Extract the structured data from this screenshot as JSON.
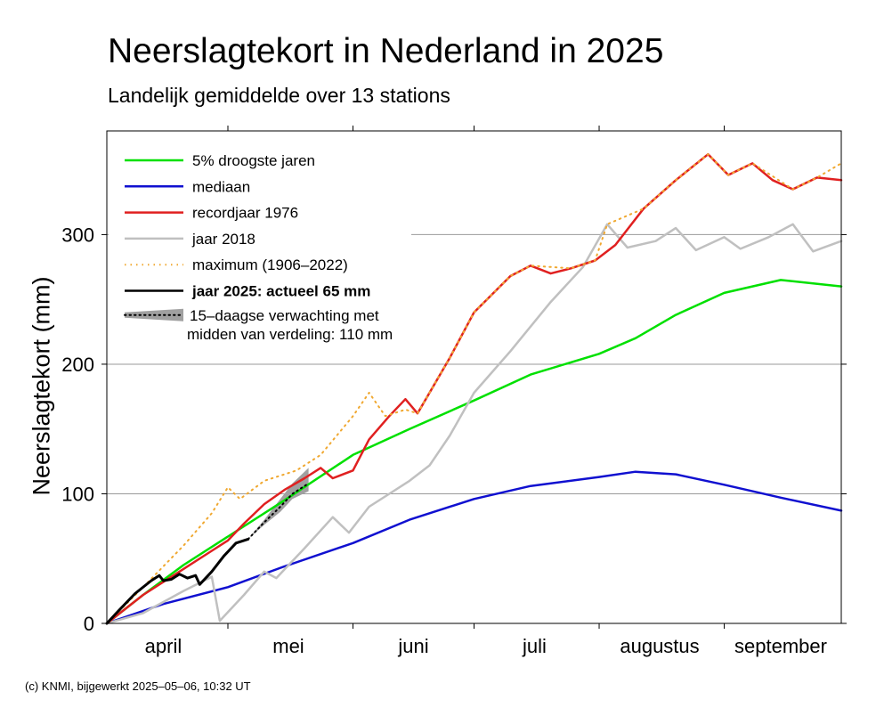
{
  "chart_data": {
    "type": "line",
    "title": "Neerslagtekort in Nederland in 2025",
    "subtitle": "Landelijk gemiddelde over 13 stations",
    "ylabel": "Neerslagtekort (mm)",
    "xlabel": "",
    "x_start": "2025-04-01",
    "x_end": "2025-09-30",
    "ylim": [
      0,
      380
    ],
    "yticks": [
      0,
      100,
      200,
      300
    ],
    "month_labels": [
      {
        "label": "april",
        "date": "2025-04-15"
      },
      {
        "label": "mei",
        "date": "2025-05-16"
      },
      {
        "label": "juni",
        "date": "2025-06-16"
      },
      {
        "label": "juli",
        "date": "2025-07-16"
      },
      {
        "label": "augustus",
        "date": "2025-08-16"
      },
      {
        "label": "september",
        "date": "2025-09-15"
      }
    ],
    "month_boundaries": [
      "2025-05-01",
      "2025-06-01",
      "2025-07-01",
      "2025-08-01",
      "2025-09-01"
    ],
    "grid": "horizontal",
    "legend_position": "top-left",
    "series": [
      {
        "name": "5% droogste jaren",
        "color": "#00e000",
        "style": "solid",
        "points": [
          [
            "2025-04-01",
            0
          ],
          [
            "2025-04-10",
            22
          ],
          [
            "2025-04-20",
            45
          ],
          [
            "2025-05-01",
            67
          ],
          [
            "2025-05-15",
            95
          ],
          [
            "2025-06-01",
            130
          ],
          [
            "2025-06-15",
            150
          ],
          [
            "2025-07-01",
            172
          ],
          [
            "2025-07-15",
            192
          ],
          [
            "2025-08-01",
            208
          ],
          [
            "2025-08-10",
            220
          ],
          [
            "2025-08-20",
            238
          ],
          [
            "2025-09-01",
            255
          ],
          [
            "2025-09-15",
            265
          ],
          [
            "2025-09-30",
            260
          ]
        ]
      },
      {
        "name": "mediaan",
        "color": "#1010d0",
        "style": "solid",
        "points": [
          [
            "2025-04-01",
            0
          ],
          [
            "2025-04-15",
            15
          ],
          [
            "2025-05-01",
            28
          ],
          [
            "2025-05-15",
            44
          ],
          [
            "2025-06-01",
            62
          ],
          [
            "2025-06-15",
            80
          ],
          [
            "2025-07-01",
            96
          ],
          [
            "2025-07-15",
            106
          ],
          [
            "2025-08-01",
            113
          ],
          [
            "2025-08-10",
            117
          ],
          [
            "2025-08-20",
            115
          ],
          [
            "2025-09-01",
            107
          ],
          [
            "2025-09-15",
            97
          ],
          [
            "2025-09-30",
            87
          ]
        ]
      },
      {
        "name": "recordjaar 1976",
        "color": "#e02020",
        "style": "solid",
        "points": [
          [
            "2025-04-01",
            0
          ],
          [
            "2025-04-10",
            22
          ],
          [
            "2025-04-20",
            42
          ],
          [
            "2025-04-27",
            56
          ],
          [
            "2025-05-01",
            64
          ],
          [
            "2025-05-05",
            77
          ],
          [
            "2025-05-10",
            92
          ],
          [
            "2025-05-15",
            103
          ],
          [
            "2025-05-20",
            112
          ],
          [
            "2025-05-24",
            120
          ],
          [
            "2025-05-27",
            112
          ],
          [
            "2025-06-01",
            118
          ],
          [
            "2025-06-05",
            142
          ],
          [
            "2025-06-10",
            160
          ],
          [
            "2025-06-14",
            173
          ],
          [
            "2025-06-17",
            162
          ],
          [
            "2025-06-25",
            205
          ],
          [
            "2025-07-01",
            240
          ],
          [
            "2025-07-10",
            268
          ],
          [
            "2025-07-15",
            276
          ],
          [
            "2025-07-20",
            270
          ],
          [
            "2025-07-25",
            274
          ],
          [
            "2025-07-31",
            280
          ],
          [
            "2025-08-05",
            292
          ],
          [
            "2025-08-12",
            320
          ],
          [
            "2025-08-20",
            342
          ],
          [
            "2025-08-28",
            362
          ],
          [
            "2025-09-02",
            346
          ],
          [
            "2025-09-08",
            355
          ],
          [
            "2025-09-13",
            342
          ],
          [
            "2025-09-18",
            335
          ],
          [
            "2025-09-24",
            344
          ],
          [
            "2025-09-30",
            342
          ]
        ]
      },
      {
        "name": "jaar 2018",
        "color": "#c0c0c0",
        "style": "solid",
        "points": [
          [
            "2025-04-01",
            0
          ],
          [
            "2025-04-10",
            8
          ],
          [
            "2025-04-20",
            25
          ],
          [
            "2025-04-27",
            36
          ],
          [
            "2025-04-29",
            2
          ],
          [
            "2025-05-05",
            22
          ],
          [
            "2025-05-10",
            40
          ],
          [
            "2025-05-13",
            35
          ],
          [
            "2025-05-20",
            58
          ],
          [
            "2025-05-27",
            82
          ],
          [
            "2025-05-31",
            70
          ],
          [
            "2025-06-05",
            90
          ],
          [
            "2025-06-10",
            100
          ],
          [
            "2025-06-15",
            110
          ],
          [
            "2025-06-20",
            122
          ],
          [
            "2025-06-25",
            145
          ],
          [
            "2025-07-01",
            178
          ],
          [
            "2025-07-10",
            210
          ],
          [
            "2025-07-20",
            248
          ],
          [
            "2025-07-28",
            275
          ],
          [
            "2025-08-03",
            308
          ],
          [
            "2025-08-08",
            290
          ],
          [
            "2025-08-15",
            295
          ],
          [
            "2025-08-20",
            305
          ],
          [
            "2025-08-25",
            288
          ],
          [
            "2025-09-01",
            298
          ],
          [
            "2025-09-05",
            289
          ],
          [
            "2025-09-12",
            298
          ],
          [
            "2025-09-18",
            308
          ],
          [
            "2025-09-23",
            287
          ],
          [
            "2025-09-30",
            295
          ]
        ]
      },
      {
        "name": "maximum (1906–2022)",
        "color": "#f0a830",
        "style": "dotted",
        "points": [
          [
            "2025-04-01",
            0
          ],
          [
            "2025-04-10",
            28
          ],
          [
            "2025-04-20",
            60
          ],
          [
            "2025-04-27",
            85
          ],
          [
            "2025-05-01",
            105
          ],
          [
            "2025-05-04",
            96
          ],
          [
            "2025-05-10",
            110
          ],
          [
            "2025-05-18",
            118
          ],
          [
            "2025-05-24",
            130
          ],
          [
            "2025-06-01",
            160
          ],
          [
            "2025-06-05",
            178
          ],
          [
            "2025-06-09",
            160
          ],
          [
            "2025-06-14",
            165
          ],
          [
            "2025-06-17",
            162
          ],
          [
            "2025-06-25",
            205
          ],
          [
            "2025-07-01",
            240
          ],
          [
            "2025-07-10",
            268
          ],
          [
            "2025-07-15",
            276
          ],
          [
            "2025-07-25",
            274
          ],
          [
            "2025-07-31",
            280
          ],
          [
            "2025-08-03",
            308
          ],
          [
            "2025-08-12",
            320
          ],
          [
            "2025-08-20",
            342
          ],
          [
            "2025-08-28",
            362
          ],
          [
            "2025-09-02",
            346
          ],
          [
            "2025-09-08",
            355
          ],
          [
            "2025-09-18",
            335
          ],
          [
            "2025-09-24",
            344
          ],
          [
            "2025-09-30",
            355
          ]
        ]
      },
      {
        "name": "jaar 2025: actueel 65 mm",
        "color": "#000000",
        "style": "solid",
        "points": [
          [
            "2025-04-01",
            0
          ],
          [
            "2025-04-04",
            10
          ],
          [
            "2025-04-08",
            23
          ],
          [
            "2025-04-12",
            33
          ],
          [
            "2025-04-14",
            37
          ],
          [
            "2025-04-15",
            33
          ],
          [
            "2025-04-17",
            34
          ],
          [
            "2025-04-19",
            38
          ],
          [
            "2025-04-21",
            35
          ],
          [
            "2025-04-23",
            37
          ],
          [
            "2025-04-24",
            30
          ],
          [
            "2025-04-27",
            40
          ],
          [
            "2025-04-30",
            52
          ],
          [
            "2025-05-03",
            62
          ],
          [
            "2025-05-06",
            65
          ]
        ]
      }
    ],
    "forecast": {
      "name": "15-daagse verwachting met midden van verdeling: 110 mm",
      "color": "#a0a0a0",
      "median_color": "#000000",
      "median": [
        [
          "2025-05-06",
          65
        ],
        [
          "2025-05-10",
          78
        ],
        [
          "2025-05-14",
          90
        ],
        [
          "2025-05-17",
          100
        ],
        [
          "2025-05-21",
          108
        ]
      ],
      "lower": [
        [
          "2025-05-06",
          65
        ],
        [
          "2025-05-10",
          76
        ],
        [
          "2025-05-14",
          86
        ],
        [
          "2025-05-17",
          96
        ],
        [
          "2025-05-21",
          102
        ]
      ],
      "upper": [
        [
          "2025-05-06",
          65
        ],
        [
          "2025-05-10",
          80
        ],
        [
          "2025-05-14",
          96
        ],
        [
          "2025-05-17",
          108
        ],
        [
          "2025-05-21",
          120
        ]
      ]
    },
    "legend": [
      {
        "text": "5% droogste jaren",
        "kind": "line",
        "color": "#00e000",
        "style": "solid",
        "bold": false
      },
      {
        "text": "mediaan",
        "kind": "line",
        "color": "#1010d0",
        "style": "solid",
        "bold": false
      },
      {
        "text": "recordjaar 1976",
        "kind": "line",
        "color": "#e02020",
        "style": "solid",
        "bold": false
      },
      {
        "text": "jaar 2018",
        "kind": "line",
        "color": "#c0c0c0",
        "style": "solid",
        "bold": false
      },
      {
        "text": "maximum (1906–2022)",
        "kind": "line",
        "color": "#f0a830",
        "style": "dotted",
        "bold": false
      },
      {
        "text": "jaar 2025: actueel 65 mm",
        "kind": "line",
        "color": "#000000",
        "style": "solid",
        "bold": true
      },
      {
        "text": [
          "15–daagse verwachting met",
          "midden van verdeling: 110 mm"
        ],
        "kind": "forecast",
        "color": "#a0a0a0",
        "style": "band",
        "bold": false
      }
    ]
  },
  "footer": {
    "copyright": "(c) KNMI, bijgewerkt 2025–05–06, 10:32 UT"
  }
}
